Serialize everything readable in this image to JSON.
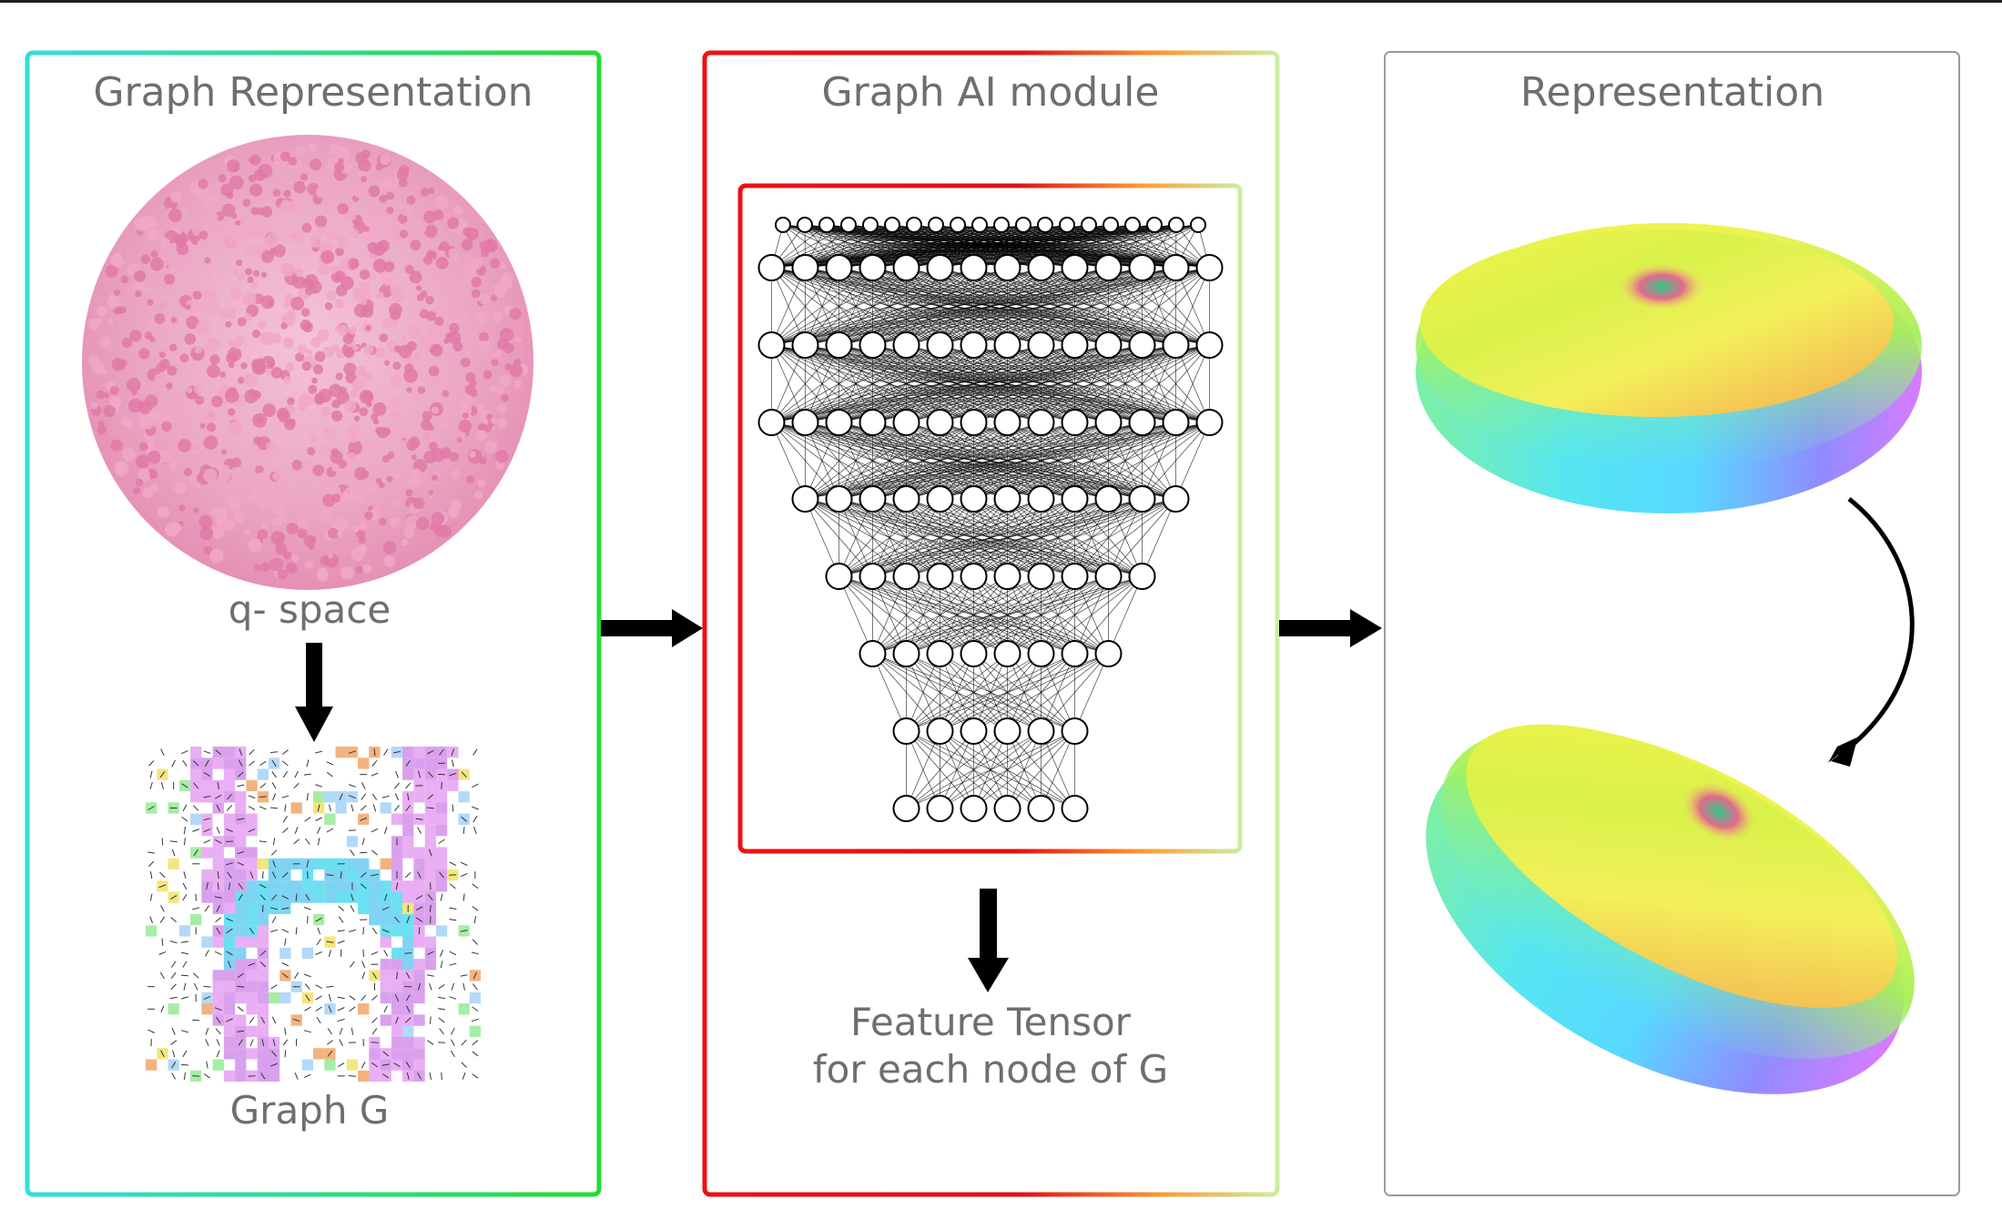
{
  "panels": {
    "graph_representation": {
      "title": "Graph Representation",
      "q_space_caption": "q- space",
      "graph_caption": "Graph G"
    },
    "graph_ai_module": {
      "title": "Graph AI module",
      "output_line1": "Feature Tensor",
      "output_line2": "for each node of G"
    },
    "representation": {
      "title": "Representation"
    }
  },
  "network": {
    "layer_sizes": [
      14,
      14,
      14,
      14,
      12,
      10,
      8,
      6,
      6
    ]
  },
  "colors": {
    "panel1_gradient": [
      "#33dddd",
      "#22dd33"
    ],
    "panel2_gradient": [
      "#ee1111",
      "#dd1111",
      "#ff9933",
      "#ddee88",
      "#cceea0"
    ],
    "panel3_border": "#9a9a9a",
    "q_space_points": "#e896b8",
    "arrows": "#000000"
  }
}
